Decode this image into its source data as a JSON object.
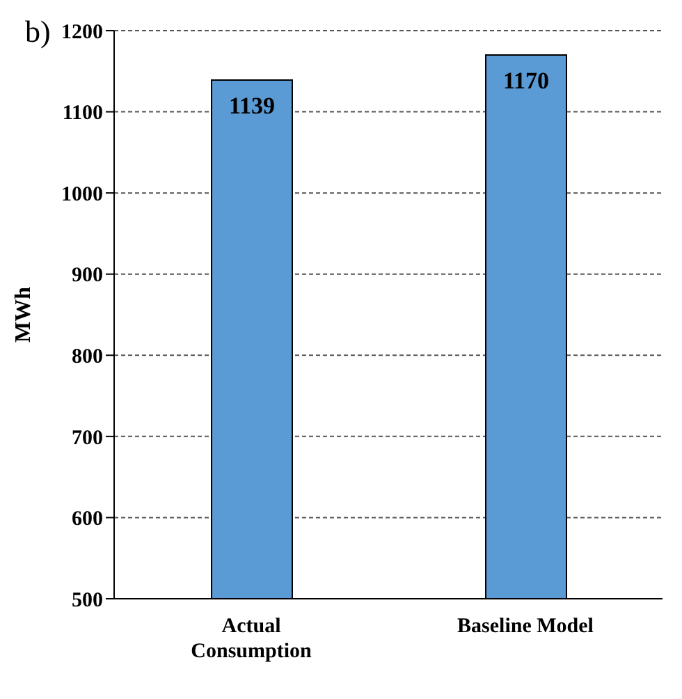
{
  "chart_data": {
    "type": "bar",
    "title": "b)",
    "ylabel": "MWh",
    "categories": [
      "Actual Consumption",
      "Baseline Model"
    ],
    "values": [
      1139,
      1170
    ],
    "color": "#5b9bd5",
    "ylim": [
      500,
      1200
    ],
    "yticks": [
      500,
      600,
      700,
      800,
      900,
      1000,
      1100,
      1200
    ],
    "grid": "y",
    "data_labels": true
  }
}
